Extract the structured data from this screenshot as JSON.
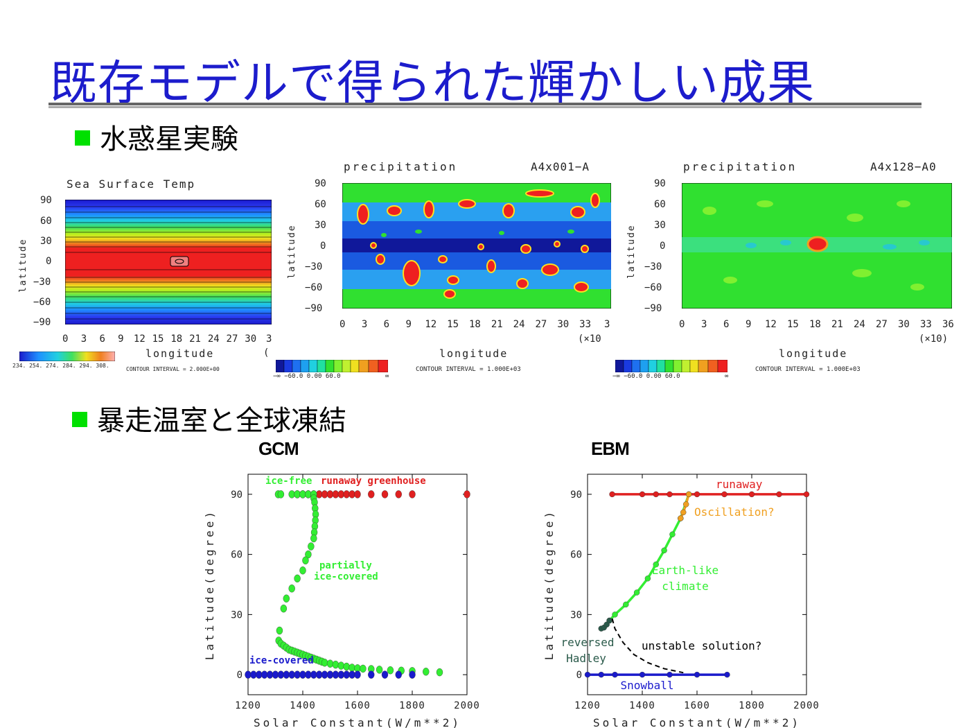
{
  "title": "既存モデルで得られた輝かしい成果",
  "bullets": {
    "aqua": "水惑星実験",
    "runaway": "暴走温室と全球凍結"
  },
  "colors": {
    "title": "#1c1ccc",
    "bullet": "#00e000",
    "red": "#e02020",
    "green": "#33ee33",
    "blue": "#1a1acc",
    "orange": "#f0a020",
    "darkgreen": "#2a5a4a"
  },
  "sst": {
    "title": "Sea Surface Temp",
    "ylabel": "latitude",
    "xlabel": "longitude",
    "yticks": [
      "90",
      "60",
      "30",
      "0",
      "−30",
      "−60",
      "−90"
    ],
    "xticks": [
      "0",
      "3",
      "6",
      "9",
      "12",
      "15",
      "18",
      "21",
      "24",
      "27",
      "30",
      "3"
    ],
    "xunit": "(",
    "colorbar_ticks": "234. 254. 274. 284. 294. 308.",
    "contour": "CONTOUR INTERVAL = 2.000E+00"
  },
  "precip1": {
    "title": "precipitation",
    "run": "A4x001−A",
    "ylabel": "latitude",
    "xlabel": "longitude",
    "yticks": [
      "90",
      "60",
      "30",
      "0",
      "−30",
      "−60",
      "−90"
    ],
    "xticks": [
      "0",
      "3",
      "6",
      "9",
      "12",
      "15",
      "18",
      "21",
      "24",
      "27",
      "30",
      "33",
      "3"
    ],
    "xunit": "(×10",
    "colorbar_ticks": "−∞  −60.0 0.00  60.0",
    "colorbar_inf": "∞",
    "contour": "CONTOUR INTERVAL = 1.000E+03"
  },
  "precip2": {
    "title": "precipitation",
    "run": "A4x128−A0",
    "ylabel": "latitude",
    "xlabel": "longitude",
    "yticks": [
      "90",
      "60",
      "30",
      "0",
      "−30",
      "−60",
      "−90"
    ],
    "xticks": [
      "0",
      "3",
      "6",
      "9",
      "12",
      "15",
      "18",
      "21",
      "24",
      "27",
      "30",
      "33",
      "36"
    ],
    "xunit": "(×10)",
    "colorbar_ticks": "−∞  −60.0 0.00  60.0",
    "colorbar_inf": "∞",
    "contour": "CONTOUR INTERVAL = 1.000E+03"
  },
  "chart_data": [
    {
      "type": "scatter",
      "title": "GCM",
      "xlabel": "Solar Constant(W/m**2)",
      "ylabel": "Latitude(degree)",
      "xlim": [
        1200,
        2000
      ],
      "ylim": [
        -10,
        100
      ],
      "xticks": [
        1200,
        1400,
        1600,
        1800,
        2000
      ],
      "yticks": [
        0,
        30,
        60,
        90
      ],
      "annotations": {
        "ice_free": "ice-free",
        "runaway": "runaway greenhouse",
        "partially1": "partially",
        "partially2": "ice-covered",
        "ice_covered": "ice-covered"
      },
      "series": [
        {
          "name": "runaway greenhouse",
          "color": "#e02020",
          "x": [
            1380,
            1400,
            1420,
            1440,
            1460,
            1480,
            1500,
            1520,
            1540,
            1560,
            1580,
            1600,
            1650,
            1700,
            1750,
            1800,
            2000
          ],
          "y": [
            90,
            90,
            90,
            90,
            90,
            90,
            90,
            90,
            90,
            90,
            90,
            90,
            90,
            90,
            90,
            90,
            90
          ]
        },
        {
          "name": "ice-free",
          "color": "#33ee33",
          "x": [
            1310,
            1320,
            1360,
            1380,
            1400,
            1420,
            1440
          ],
          "y": [
            90,
            90,
            90,
            90,
            90,
            90,
            90
          ]
        },
        {
          "name": "partially ice-covered",
          "color": "#33ee33",
          "x": [
            1440,
            1443,
            1445,
            1447,
            1446,
            1444,
            1442,
            1440,
            1430,
            1420,
            1410,
            1400,
            1380,
            1360,
            1340,
            1330,
            1315,
            1312,
            1320,
            1330,
            1340,
            1350,
            1360,
            1370,
            1380,
            1390,
            1400,
            1410,
            1420,
            1430,
            1440,
            1450,
            1460,
            1470,
            1480,
            1500,
            1520,
            1540,
            1560,
            1580,
            1600,
            1620,
            1650,
            1680,
            1720,
            1760,
            1800,
            1850,
            1900
          ],
          "y": [
            88,
            86,
            83,
            80,
            77,
            74,
            71,
            68,
            64,
            60,
            57,
            52,
            48,
            43,
            38,
            33,
            22,
            17,
            15.5,
            14.5,
            13.5,
            12.5,
            12,
            11.5,
            11,
            10.5,
            10,
            9.5,
            9,
            8.5,
            8,
            7.5,
            7,
            6.5,
            6,
            5.5,
            5,
            4.5,
            4,
            3.5,
            3.2,
            3,
            2.8,
            2.5,
            2.2,
            2,
            1.8,
            1.5,
            1.2
          ]
        },
        {
          "name": "ice-covered",
          "color": "#1a1acc",
          "x": [
            1200,
            1220,
            1240,
            1260,
            1280,
            1300,
            1320,
            1340,
            1360,
            1380,
            1400,
            1420,
            1440,
            1460,
            1480,
            1500,
            1520,
            1540,
            1560,
            1580,
            1600,
            1650,
            1700,
            1750,
            1800
          ],
          "y": [
            0,
            0,
            0,
            0,
            0,
            0,
            0,
            0,
            0,
            0,
            0,
            0,
            0,
            0,
            0,
            0,
            0,
            0,
            0,
            0,
            0,
            0,
            0,
            0,
            0
          ]
        }
      ]
    },
    {
      "type": "line",
      "title": "EBM",
      "xlabel": "Solar Constant(W/m**2)",
      "ylabel": "Latitude(degree)",
      "xlim": [
        1200,
        2000
      ],
      "ylim": [
        -10,
        100
      ],
      "xticks": [
        1200,
        1400,
        1600,
        1800,
        2000
      ],
      "yticks": [
        0,
        30,
        60,
        90
      ],
      "annotations": {
        "runaway": "runaway",
        "oscillation": "Oscillation?",
        "earthlike1": "Earth-like",
        "earthlike2": "climate",
        "unstable": "unstable solution?",
        "reversed1": "reversed",
        "reversed2": "Hadley",
        "snowball": "Snowball"
      },
      "series": [
        {
          "name": "runaway",
          "color": "#e02020",
          "x": [
            1290,
            1400,
            1450,
            1500,
            1600,
            1700,
            1800,
            1900,
            2000
          ],
          "y": [
            90,
            90,
            90,
            90,
            90,
            90,
            90,
            90,
            90
          ]
        },
        {
          "name": "Earth-like climate",
          "color": "#33ee33",
          "x": [
            1280,
            1300,
            1340,
            1380,
            1420,
            1450,
            1480,
            1510,
            1540,
            1570
          ],
          "y": [
            27,
            30,
            35,
            41,
            48,
            55,
            62,
            70,
            78,
            90
          ]
        },
        {
          "name": "Oscillation?",
          "color": "#f0a020",
          "x": [
            1540,
            1550,
            1560,
            1570
          ],
          "y": [
            78,
            81,
            85,
            90
          ]
        },
        {
          "name": "reversed Hadley",
          "color": "#2a5a4a",
          "x": [
            1250,
            1260,
            1270,
            1280
          ],
          "y": [
            23,
            23.5,
            25,
            27
          ]
        },
        {
          "name": "unstable solution?",
          "color": "#000000",
          "x": [
            1290,
            1300,
            1330,
            1370,
            1420,
            1480,
            1550
          ],
          "y": [
            28,
            23,
            16,
            10,
            6,
            3,
            1
          ]
        },
        {
          "name": "Snowball",
          "color": "#1a1acc",
          "x": [
            1200,
            1250,
            1300,
            1400,
            1500,
            1600,
            1710
          ],
          "y": [
            0,
            0,
            0,
            0,
            0,
            0,
            0
          ]
        }
      ]
    }
  ]
}
